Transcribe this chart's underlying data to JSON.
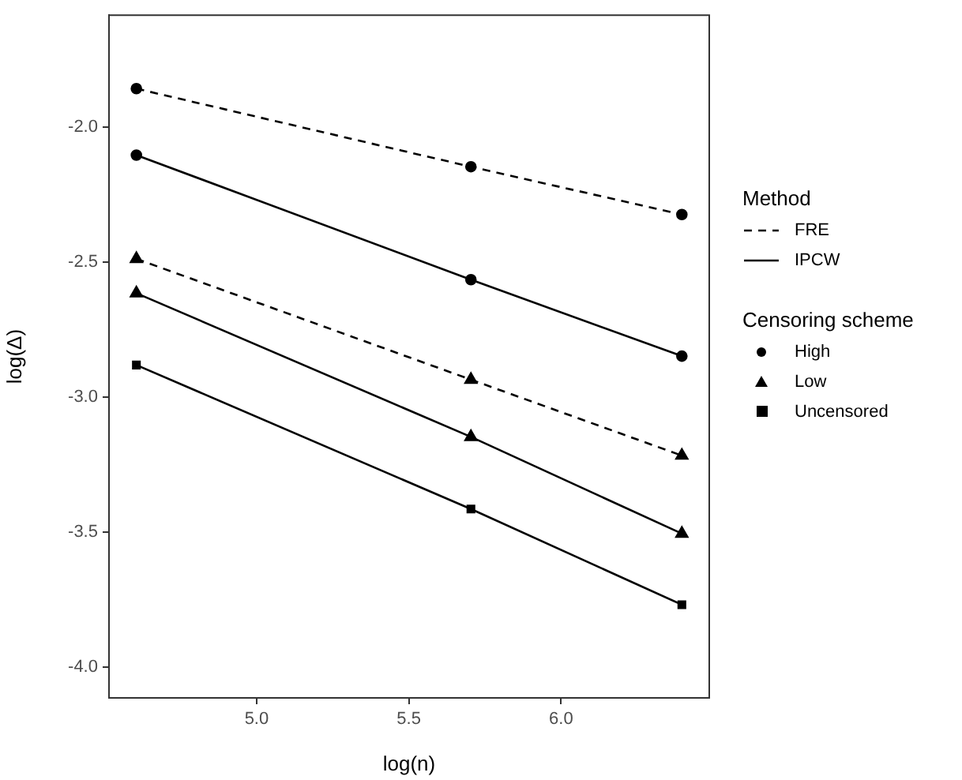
{
  "chart_data": {
    "type": "line",
    "xlabel": "log(n)",
    "ylabel": "log(Δ)",
    "legend": "right",
    "legend_title": "Censoring scheme",
    "annotations": [
      "Method",
      "FRE",
      "IPCW"
    ],
    "xlim": [
      4.515,
      6.487
    ],
    "xticks": [
      {
        "value": 5,
        "label": "5.0"
      },
      {
        "value": 5.5,
        "label": "5.5"
      },
      {
        "value": 6,
        "label": "6.0"
      }
    ],
    "ylim": [
      -4.113,
      -1.586
    ],
    "yticks": [
      {
        "value": -4,
        "label": "-4.0"
      },
      {
        "value": -3.5,
        "label": "-3.5"
      },
      {
        "value": -3,
        "label": "-3.0"
      },
      {
        "value": -2.5,
        "label": "-2.5"
      },
      {
        "value": -2,
        "label": "-2.0"
      }
    ],
    "grid": false,
    "series": [
      {
        "color": "#000000",
        "marker": "circle",
        "line_style": "dashed",
        "x": [
          4.605,
          5.704,
          6.397
        ],
        "values": [
          -1.858,
          -2.147,
          -2.324
        ]
      },
      {
        "name": "High",
        "color": "#000000",
        "marker": "circle",
        "line_style": "solid",
        "x": [
          4.605,
          5.704,
          6.397
        ],
        "values": [
          -2.104,
          -2.565,
          -2.848
        ]
      },
      {
        "color": "#000000",
        "marker": "triangle",
        "line_style": "dashed",
        "x": [
          4.605,
          5.704,
          6.397
        ],
        "values": [
          -2.488,
          -2.935,
          -3.216
        ]
      },
      {
        "name": "Low",
        "color": "#000000",
        "marker": "triangle",
        "line_style": "solid",
        "x": [
          4.605,
          5.704,
          6.397
        ],
        "values": [
          -2.615,
          -3.147,
          -3.505
        ]
      },
      {
        "name": "Uncensored",
        "color": "#000000",
        "marker": "square",
        "line_style": "solid",
        "x": [
          4.605,
          5.704,
          6.397
        ],
        "values": [
          -2.881,
          -3.414,
          -3.768
        ]
      }
    ]
  }
}
